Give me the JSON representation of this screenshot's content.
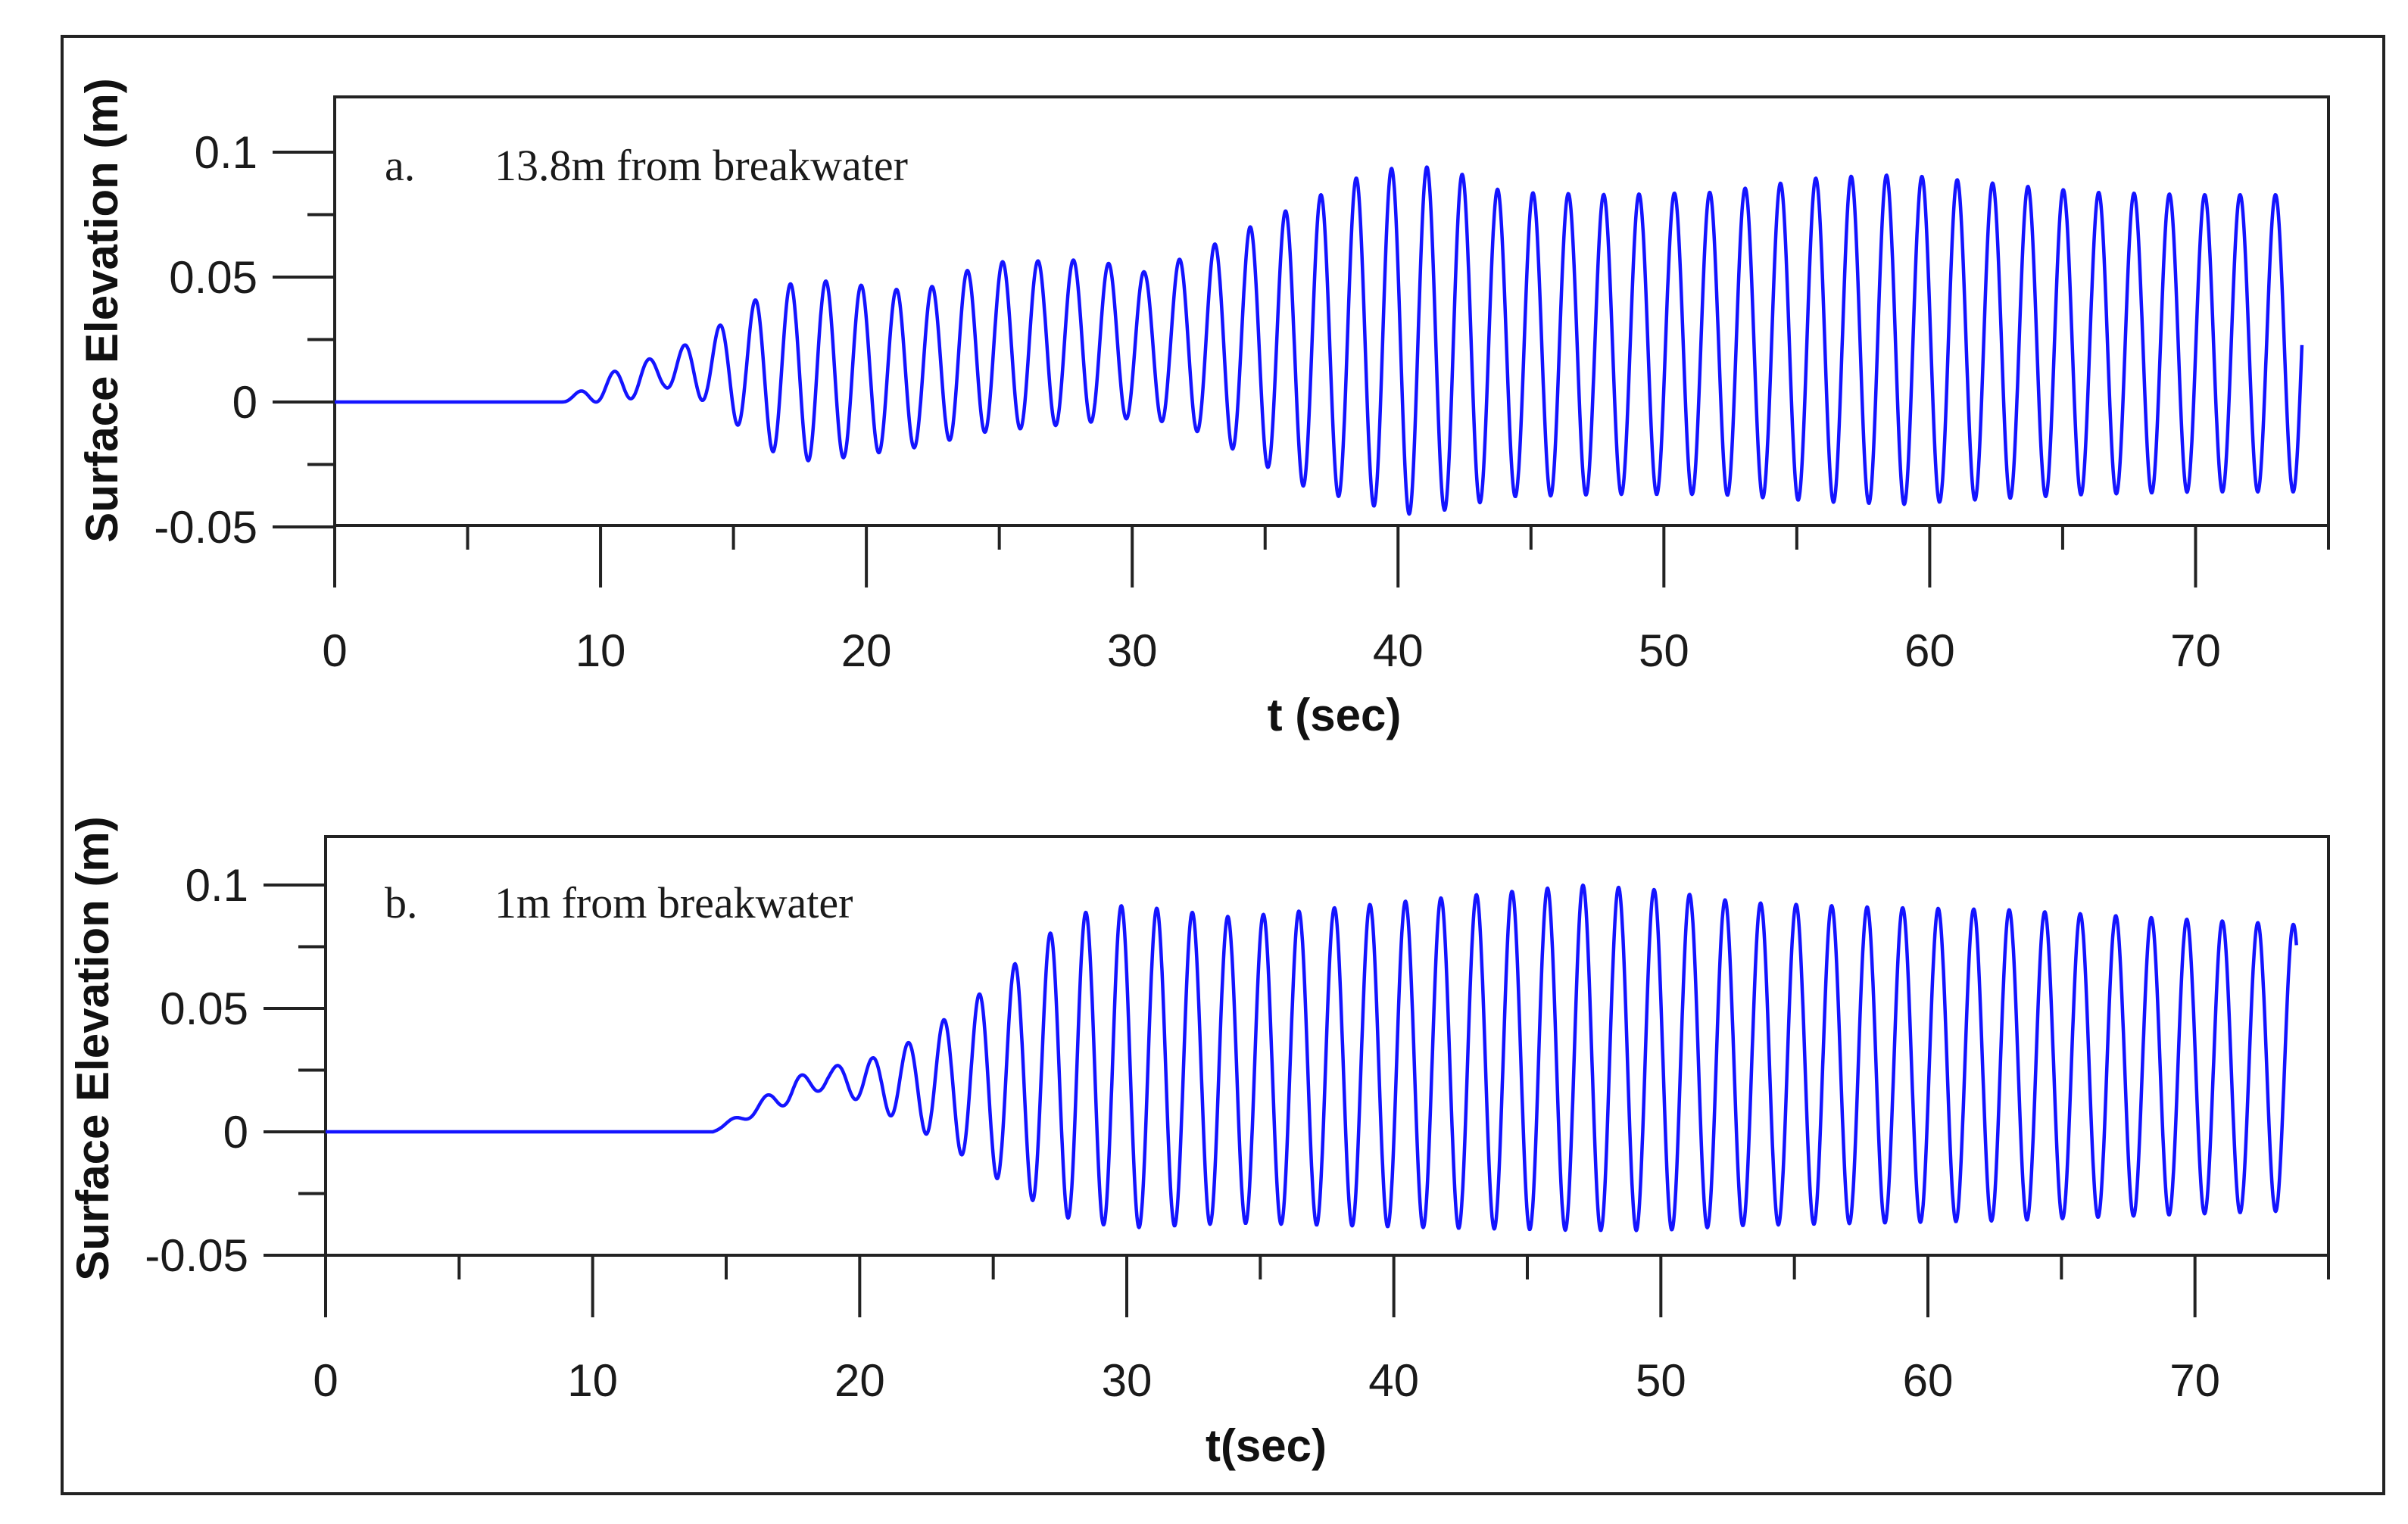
{
  "chart_data": [
    {
      "type": "line",
      "panel_label": "a.",
      "title": "13.8m from breakwater",
      "xlabel": "t (sec)",
      "ylabel": "Surface Elevation (m)",
      "xlim": [
        0,
        75
      ],
      "ylim": [
        -0.05,
        0.115
      ],
      "xticks": [
        0,
        10,
        20,
        30,
        40,
        50,
        60,
        70
      ],
      "xtick_labels": [
        "0",
        "10",
        "20",
        "30",
        "40",
        "50",
        "60",
        "70"
      ],
      "yticks": [
        -0.05,
        0,
        0.05,
        0.1
      ],
      "ytick_labels": [
        "-0.05",
        "0",
        "0.05",
        "0.1"
      ],
      "grid": false,
      "signal": {
        "period_s": 1.33,
        "start_s": 8.5,
        "end_s": 74.0,
        "envelope": [
          {
            "t": 8.5,
            "max": 0.0,
            "min": 0.0
          },
          {
            "t": 10.8,
            "max": 0.014,
            "min": 0.0
          },
          {
            "t": 12.4,
            "max": 0.019,
            "min": 0.006
          },
          {
            "t": 14.0,
            "max": 0.027,
            "min": 0.0
          },
          {
            "t": 16.5,
            "max": 0.046,
            "min": -0.02
          },
          {
            "t": 18.0,
            "max": 0.049,
            "min": -0.024
          },
          {
            "t": 22.0,
            "max": 0.044,
            "min": -0.018
          },
          {
            "t": 24.5,
            "max": 0.056,
            "min": -0.012
          },
          {
            "t": 28.5,
            "max": 0.057,
            "min": -0.008
          },
          {
            "t": 30.5,
            "max": 0.052,
            "min": -0.006
          },
          {
            "t": 32.5,
            "max": 0.06,
            "min": -0.012
          },
          {
            "t": 34.0,
            "max": 0.068,
            "min": -0.02
          },
          {
            "t": 36.5,
            "max": 0.08,
            "min": -0.034
          },
          {
            "t": 38.5,
            "max": 0.09,
            "min": -0.04
          },
          {
            "t": 40.3,
            "max": 0.095,
            "min": -0.045
          },
          {
            "t": 42.0,
            "max": 0.093,
            "min": -0.043
          },
          {
            "t": 44.0,
            "max": 0.084,
            "min": -0.038
          },
          {
            "t": 48.0,
            "max": 0.083,
            "min": -0.037
          },
          {
            "t": 52.0,
            "max": 0.084,
            "min": -0.037
          },
          {
            "t": 56.0,
            "max": 0.09,
            "min": -0.04
          },
          {
            "t": 59.0,
            "max": 0.091,
            "min": -0.041
          },
          {
            "t": 62.0,
            "max": 0.088,
            "min": -0.039
          },
          {
            "t": 66.0,
            "max": 0.084,
            "min": -0.037
          },
          {
            "t": 70.0,
            "max": 0.083,
            "min": -0.036
          },
          {
            "t": 74.0,
            "max": 0.083,
            "min": -0.036
          }
        ]
      }
    },
    {
      "type": "line",
      "panel_label": "b.",
      "title": "1m from breakwater",
      "xlabel": "t(sec)",
      "ylabel": "Surface Elevation (m)",
      "xlim": [
        0,
        75
      ],
      "ylim": [
        -0.05,
        0.115
      ],
      "xticks": [
        0,
        10,
        20,
        30,
        40,
        50,
        60,
        70
      ],
      "xtick_labels": [
        "0",
        "10",
        "20",
        "30",
        "40",
        "50",
        "60",
        "70"
      ],
      "yticks": [
        -0.05,
        0,
        0.05,
        0.1
      ],
      "ytick_labels": [
        "-0.05",
        "0",
        "0.05",
        "0.1"
      ],
      "grid": false,
      "signal": {
        "period_s": 1.33,
        "start_s": 14.5,
        "end_s": 73.8,
        "envelope": [
          {
            "t": 14.5,
            "max": 0.0,
            "min": 0.0
          },
          {
            "t": 17.5,
            "max": 0.022,
            "min": 0.012
          },
          {
            "t": 18.8,
            "max": 0.026,
            "min": 0.018
          },
          {
            "t": 20.5,
            "max": 0.03,
            "min": 0.01
          },
          {
            "t": 22.0,
            "max": 0.037,
            "min": 0.002
          },
          {
            "t": 23.5,
            "max": 0.048,
            "min": -0.007
          },
          {
            "t": 25.0,
            "max": 0.06,
            "min": -0.018
          },
          {
            "t": 26.5,
            "max": 0.075,
            "min": -0.028
          },
          {
            "t": 28.0,
            "max": 0.088,
            "min": -0.036
          },
          {
            "t": 30.0,
            "max": 0.092,
            "min": -0.039
          },
          {
            "t": 34.0,
            "max": 0.087,
            "min": -0.037
          },
          {
            "t": 38.0,
            "max": 0.091,
            "min": -0.038
          },
          {
            "t": 42.0,
            "max": 0.095,
            "min": -0.039
          },
          {
            "t": 47.0,
            "max": 0.1,
            "min": -0.04
          },
          {
            "t": 50.0,
            "max": 0.098,
            "min": -0.04
          },
          {
            "t": 53.0,
            "max": 0.093,
            "min": -0.038
          },
          {
            "t": 58.0,
            "max": 0.091,
            "min": -0.037
          },
          {
            "t": 63.0,
            "max": 0.09,
            "min": -0.036
          },
          {
            "t": 68.0,
            "max": 0.087,
            "min": -0.034
          },
          {
            "t": 73.8,
            "max": 0.084,
            "min": -0.032
          }
        ]
      }
    }
  ]
}
